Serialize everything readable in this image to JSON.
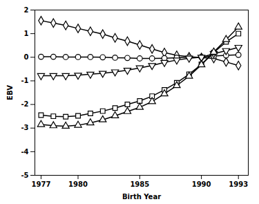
{
  "chart_data": {
    "type": "line",
    "x": [
      1977,
      1978,
      1979,
      1980,
      1981,
      1982,
      1983,
      1984,
      1985,
      1986,
      1987,
      1988,
      1989,
      1990,
      1991,
      1992,
      1993
    ],
    "series": [
      {
        "color": "#000000",
        "marker": "diamond",
        "values": [
          1.55,
          1.45,
          1.35,
          1.22,
          1.1,
          0.98,
          0.82,
          0.68,
          0.52,
          0.35,
          0.2,
          0.08,
          0.02,
          -0.01,
          -0.05,
          -0.2,
          -0.35
        ]
      },
      {
        "color": "#000000",
        "marker": "circle",
        "values": [
          0.02,
          0.02,
          0.01,
          0.01,
          0.01,
          0.0,
          -0.02,
          -0.03,
          -0.05,
          -0.05,
          -0.04,
          -0.02,
          0.0,
          0.01,
          0.05,
          0.08,
          0.1
        ]
      },
      {
        "color": "#000000",
        "marker": "triangle_down",
        "values": [
          -0.78,
          -0.78,
          -0.78,
          -0.76,
          -0.72,
          -0.68,
          -0.62,
          -0.55,
          -0.45,
          -0.35,
          -0.22,
          -0.12,
          -0.04,
          0.0,
          0.15,
          0.28,
          0.42
        ]
      },
      {
        "color": "#000000",
        "marker": "square",
        "values": [
          -2.45,
          -2.5,
          -2.52,
          -2.48,
          -2.38,
          -2.28,
          -2.15,
          -2.0,
          -1.85,
          -1.65,
          -1.38,
          -1.08,
          -0.72,
          -0.3,
          0.2,
          0.65,
          1.0
        ]
      },
      {
        "color": "#000000",
        "marker": "triangle_up",
        "values": [
          -2.85,
          -2.9,
          -2.92,
          -2.88,
          -2.78,
          -2.65,
          -2.48,
          -2.3,
          -2.12,
          -1.88,
          -1.55,
          -1.2,
          -0.8,
          -0.32,
          0.22,
          0.75,
          1.28
        ]
      }
    ],
    "xlim": [
      1976.5,
      1993.8
    ],
    "xticks": [
      1977,
      1980,
      1985,
      1990,
      1993
    ],
    "ylim": [
      -5,
      2
    ],
    "yticks": [
      -5,
      -4,
      -3,
      -2,
      -1,
      0,
      1,
      2
    ],
    "xlabel": "Birth Year",
    "ylabel": "EBV",
    "grid": false
  }
}
